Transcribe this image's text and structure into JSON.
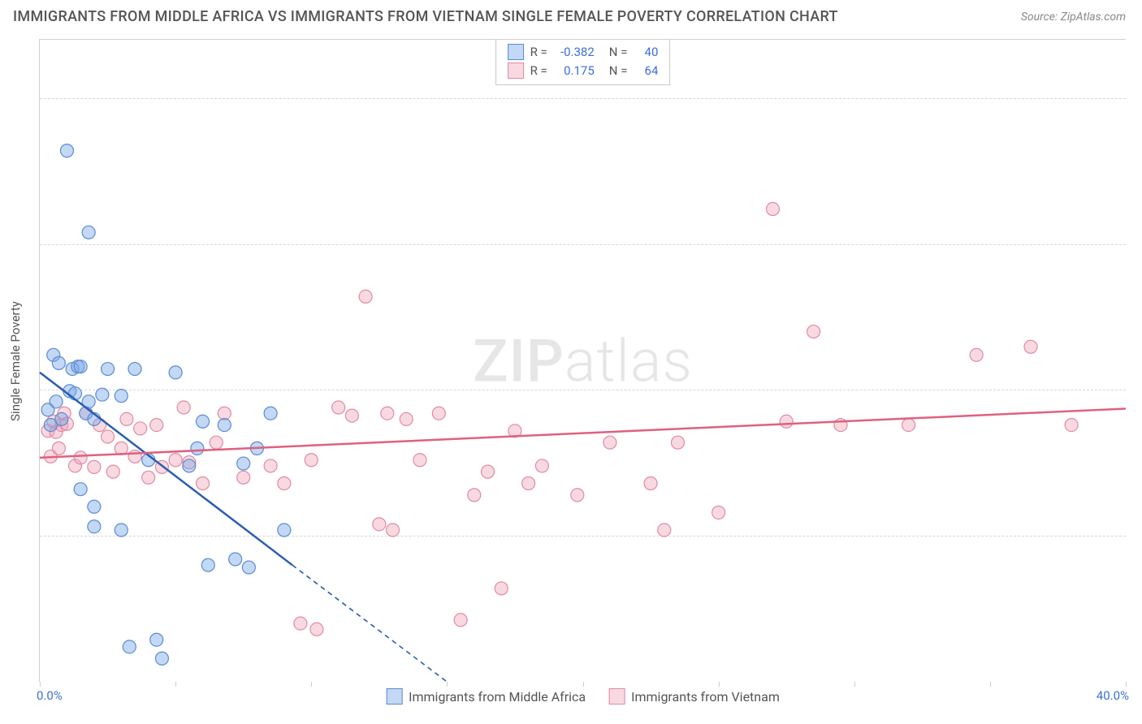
{
  "title": "IMMIGRANTS FROM MIDDLE AFRICA VS IMMIGRANTS FROM VIETNAM SINGLE FEMALE POVERTY CORRELATION CHART",
  "source": "Source: ZipAtlas.com",
  "watermark_a": "ZIP",
  "watermark_b": "atlas",
  "chart": {
    "type": "scatter",
    "xlim": [
      0,
      40
    ],
    "ylim": [
      0,
      55
    ],
    "xticks": [
      0,
      5,
      10,
      15,
      20,
      25,
      30,
      35,
      40
    ],
    "yticks": [
      12.5,
      25.0,
      37.5,
      50.0
    ],
    "ytick_labels": [
      "12.5%",
      "25.0%",
      "37.5%",
      "50.0%"
    ],
    "xlabel_min": "0.0%",
    "xlabel_max": "40.0%",
    "yaxis_title": "Single Female Poverty",
    "background_color": "#ffffff",
    "grid_color": "#d8d8d8",
    "tick_color": "#cccccc",
    "axis_label_color": "#3b6fd6",
    "marker_radius": 8,
    "line_width": 2.5,
    "series": [
      {
        "name": "Immigrants from Middle Africa",
        "color_fill": "rgba(122,168,232,0.45)",
        "color_stroke": "#5a8bd0",
        "line_color": "#2a5db0",
        "R": "-0.382",
        "N": "40",
        "regression": {
          "x1": 0,
          "y1": 26.5,
          "x2": 9.3,
          "y2": 10.0,
          "extend_to_x": 15.0,
          "extend_to_y": 0.0
        },
        "points": [
          [
            0.3,
            23.3
          ],
          [
            0.4,
            22.0
          ],
          [
            0.5,
            28.0
          ],
          [
            0.6,
            24.0
          ],
          [
            0.7,
            27.3
          ],
          [
            0.8,
            22.5
          ],
          [
            1.0,
            45.5
          ],
          [
            1.1,
            24.9
          ],
          [
            1.2,
            26.8
          ],
          [
            1.3,
            24.7
          ],
          [
            1.4,
            27.0
          ],
          [
            1.5,
            27.0
          ],
          [
            1.5,
            16.5
          ],
          [
            1.7,
            23.0
          ],
          [
            1.8,
            24.0
          ],
          [
            1.8,
            38.5
          ],
          [
            2.0,
            15.0
          ],
          [
            2.0,
            13.3
          ],
          [
            2.0,
            22.5
          ],
          [
            2.3,
            24.6
          ],
          [
            2.5,
            26.8
          ],
          [
            3.0,
            13.0
          ],
          [
            3.0,
            24.5
          ],
          [
            3.3,
            3.0
          ],
          [
            3.5,
            26.8
          ],
          [
            4.0,
            19.0
          ],
          [
            4.3,
            3.6
          ],
          [
            4.5,
            2.0
          ],
          [
            5.0,
            26.5
          ],
          [
            5.5,
            18.5
          ],
          [
            5.8,
            20.0
          ],
          [
            6.0,
            22.3
          ],
          [
            6.2,
            10.0
          ],
          [
            6.8,
            22.0
          ],
          [
            7.2,
            10.5
          ],
          [
            7.5,
            18.7
          ],
          [
            7.7,
            9.8
          ],
          [
            8.0,
            20.0
          ],
          [
            8.5,
            23.0
          ],
          [
            9.0,
            13.0
          ]
        ]
      },
      {
        "name": "Immigrants from Vietnam",
        "color_fill": "rgba(240,160,180,0.40)",
        "color_stroke": "#e08aa2",
        "line_color": "#e0607f",
        "R": "0.175",
        "N": "64",
        "regression": {
          "x1": 0,
          "y1": 19.2,
          "x2": 40,
          "y2": 23.4
        },
        "points": [
          [
            0.3,
            21.5
          ],
          [
            0.4,
            19.3
          ],
          [
            0.5,
            22.3
          ],
          [
            0.6,
            21.4
          ],
          [
            0.7,
            20.0
          ],
          [
            0.8,
            22.0
          ],
          [
            0.9,
            23.0
          ],
          [
            1.0,
            22.1
          ],
          [
            1.3,
            18.5
          ],
          [
            1.5,
            19.2
          ],
          [
            1.7,
            23.0
          ],
          [
            2.0,
            18.4
          ],
          [
            2.2,
            22.0
          ],
          [
            2.5,
            21.0
          ],
          [
            2.7,
            18.0
          ],
          [
            3.0,
            20.0
          ],
          [
            3.2,
            22.5
          ],
          [
            3.5,
            19.3
          ],
          [
            3.7,
            21.7
          ],
          [
            4.0,
            17.5
          ],
          [
            4.3,
            22.0
          ],
          [
            4.5,
            18.4
          ],
          [
            5.0,
            19.0
          ],
          [
            5.3,
            23.5
          ],
          [
            5.5,
            18.8
          ],
          [
            6.0,
            17.0
          ],
          [
            6.5,
            20.5
          ],
          [
            6.8,
            23.0
          ],
          [
            7.5,
            17.5
          ],
          [
            8.5,
            18.5
          ],
          [
            9.0,
            17.0
          ],
          [
            9.6,
            5.0
          ],
          [
            10.0,
            19.0
          ],
          [
            10.2,
            4.5
          ],
          [
            11.0,
            23.5
          ],
          [
            11.5,
            22.8
          ],
          [
            12.0,
            33.0
          ],
          [
            12.5,
            13.5
          ],
          [
            12.8,
            23.0
          ],
          [
            13.0,
            13.0
          ],
          [
            13.5,
            22.5
          ],
          [
            14.0,
            19.0
          ],
          [
            14.7,
            23.0
          ],
          [
            15.5,
            5.3
          ],
          [
            16.0,
            16.0
          ],
          [
            16.5,
            18.0
          ],
          [
            17.0,
            8.0
          ],
          [
            17.5,
            21.5
          ],
          [
            18.0,
            17.0
          ],
          [
            18.5,
            18.5
          ],
          [
            19.8,
            16.0
          ],
          [
            21.0,
            20.5
          ],
          [
            22.5,
            17.0
          ],
          [
            23.0,
            13.0
          ],
          [
            23.5,
            20.5
          ],
          [
            25.0,
            14.5
          ],
          [
            27.0,
            40.5
          ],
          [
            27.5,
            22.3
          ],
          [
            28.5,
            30.0
          ],
          [
            29.5,
            22.0
          ],
          [
            32.0,
            22.0
          ],
          [
            34.5,
            28.0
          ],
          [
            36.5,
            28.7
          ],
          [
            38.0,
            22.0
          ]
        ]
      }
    ]
  }
}
